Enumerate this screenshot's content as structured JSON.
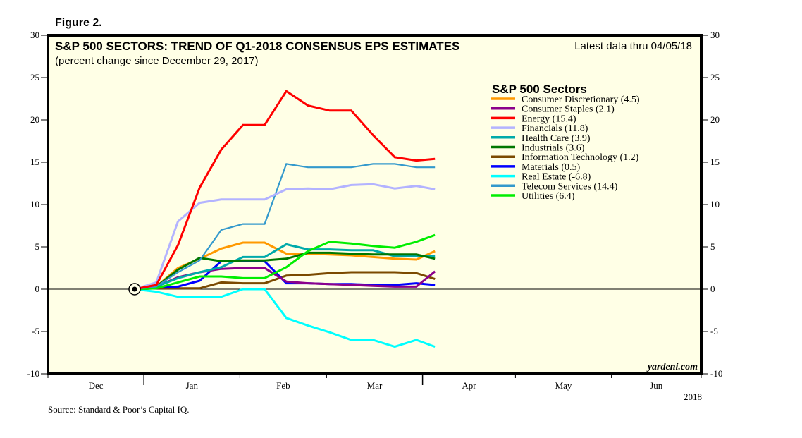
{
  "figure_label": "Figure 2.",
  "source": "Source: Standard & Poor’s Capital IQ.",
  "watermark": "yardeni.com",
  "chart_data": {
    "type": "line",
    "title": "S&P 500 SECTORS: TREND OF Q1-2018 CONSENSUS EPS ESTIMATES",
    "subtitle": "(percent change since December 29, 2017)",
    "annotation": "Latest data thru 04/05/18",
    "xlabel": "",
    "ylabel": "",
    "ylim": [
      -10,
      30
    ],
    "yticks": [
      -10,
      -5,
      0,
      5,
      10,
      15,
      20,
      25,
      30
    ],
    "y_axes": [
      "left",
      "right"
    ],
    "x_months": [
      "Dec",
      "Jan",
      "Feb",
      "Mar",
      "Apr",
      "May",
      "Jun"
    ],
    "x_year_label": "2018",
    "x_range": [
      "2017-12-01",
      "2018-06-30"
    ],
    "baseline_marker": {
      "date": "2017-12-29",
      "value": 0
    },
    "x": [
      "2017-12-29",
      "2018-01-05",
      "2018-01-12",
      "2018-01-19",
      "2018-01-26",
      "2018-02-02",
      "2018-02-09",
      "2018-02-16",
      "2018-02-23",
      "2018-03-02",
      "2018-03-09",
      "2018-03-16",
      "2018-03-23",
      "2018-03-30",
      "2018-04-05"
    ],
    "legend": {
      "title": "S&P 500 Sectors",
      "placement": "top-right"
    },
    "grid": false,
    "series": [
      {
        "name": "Consumer Discretionary (4.5)",
        "color": "#ff9900",
        "values": [
          0,
          0.3,
          2.5,
          3.6,
          4.8,
          5.5,
          5.5,
          4.2,
          4.2,
          4.1,
          4.0,
          3.8,
          3.6,
          3.5,
          4.5
        ]
      },
      {
        "name": "Consumer Staples (2.1)",
        "color": "#8b008b",
        "values": [
          0,
          0.3,
          1.4,
          2.0,
          2.4,
          2.5,
          2.5,
          0.9,
          0.7,
          0.6,
          0.5,
          0.4,
          0.3,
          0.3,
          2.1
        ]
      },
      {
        "name": "Energy (15.4)",
        "color": "#ff0000",
        "values": [
          0,
          0.5,
          5.2,
          12.0,
          16.5,
          19.4,
          19.4,
          23.4,
          21.7,
          21.1,
          21.1,
          18.2,
          15.6,
          15.2,
          15.4
        ]
      },
      {
        "name": "Financials (11.8)",
        "color": "#b3b3ff",
        "values": [
          0,
          0.8,
          8.0,
          10.2,
          10.6,
          10.6,
          10.6,
          11.8,
          11.9,
          11.8,
          12.3,
          12.4,
          11.9,
          12.2,
          11.8
        ]
      },
      {
        "name": "Health Care (3.9)",
        "color": "#00aaaa",
        "values": [
          0,
          0.3,
          1.3,
          2.0,
          2.6,
          3.8,
          3.8,
          5.3,
          4.7,
          4.7,
          4.6,
          4.6,
          3.9,
          3.9,
          3.9
        ]
      },
      {
        "name": "Industrials (3.6)",
        "color": "#007700",
        "values": [
          0,
          0.3,
          2.3,
          3.7,
          3.3,
          3.4,
          3.4,
          3.6,
          4.3,
          4.3,
          4.2,
          4.1,
          4.1,
          4.1,
          3.6
        ]
      },
      {
        "name": "Information Technology (1.2)",
        "color": "#7b4a00",
        "values": [
          0,
          0.1,
          0.1,
          0.1,
          0.8,
          0.7,
          0.7,
          1.6,
          1.7,
          1.9,
          2.0,
          2.0,
          2.0,
          1.9,
          1.2
        ]
      },
      {
        "name": "Materials (0.5)",
        "color": "#0000ff",
        "values": [
          0,
          0.2,
          0.3,
          1.0,
          3.3,
          3.3,
          3.3,
          0.7,
          0.7,
          0.6,
          0.6,
          0.5,
          0.5,
          0.7,
          0.5
        ]
      },
      {
        "name": "Real Estate (-6.8)",
        "color": "#00ffff",
        "values": [
          0,
          -0.3,
          -0.9,
          -0.9,
          -0.9,
          0.0,
          0.0,
          -3.4,
          -4.3,
          -5.1,
          -6.0,
          -6.0,
          -6.8,
          -6.0,
          -6.8
        ]
      },
      {
        "name": "Telecom Services (14.4)",
        "color": "#3399cc",
        "values": [
          0,
          0.3,
          2.0,
          3.4,
          7.0,
          7.7,
          7.7,
          14.8,
          14.4,
          14.4,
          14.4,
          14.8,
          14.8,
          14.4,
          14.4
        ]
      },
      {
        "name": "Utilities (6.4)",
        "color": "#00ee00",
        "values": [
          0,
          0.1,
          0.8,
          1.5,
          1.5,
          1.3,
          1.3,
          2.6,
          4.5,
          5.6,
          5.4,
          5.1,
          4.9,
          5.6,
          6.4
        ]
      }
    ]
  }
}
